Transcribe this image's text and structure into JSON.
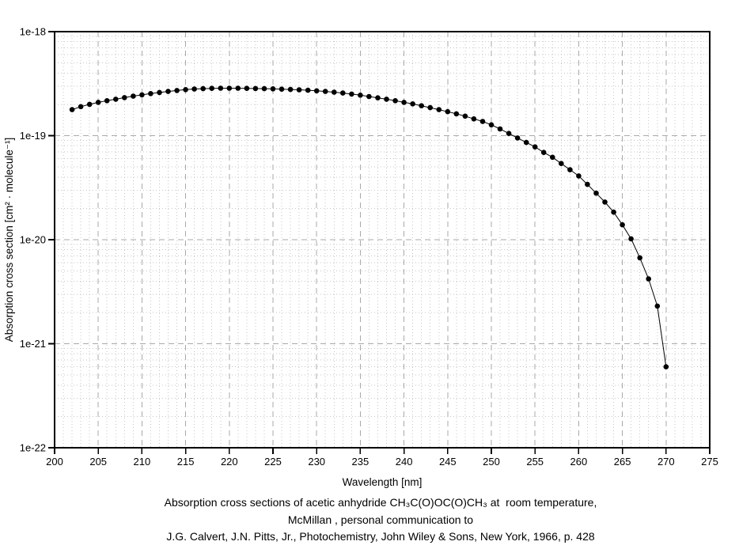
{
  "chart_data": {
    "type": "line",
    "title": "",
    "xlabel": "Wavelength [nm]",
    "ylabel": "Absorption cross section [cm² · molecule⁻¹]",
    "xscale": "linear",
    "yscale": "log",
    "xlim": [
      200,
      275
    ],
    "ylim": [
      1e-22,
      1e-18
    ],
    "grid": {
      "major": "dashed",
      "minor": "dotted",
      "x_minor_step_nm": 1,
      "x_major_step_nm": 5,
      "y_minor": "2-9 per decade"
    },
    "legend_position": "none",
    "x_major_ticks": [
      200,
      205,
      210,
      215,
      220,
      225,
      230,
      235,
      240,
      245,
      250,
      255,
      260,
      265,
      270,
      275
    ],
    "x_tick_labels": [
      "200",
      "205",
      "210",
      "215",
      "220",
      "225",
      "230",
      "235",
      "240",
      "245",
      "250",
      "255",
      "260",
      "265",
      "270",
      "275"
    ],
    "y_major_tick_values": [
      1e-18,
      1e-19,
      1e-20,
      1e-21,
      1e-22
    ],
    "y_tick_labels": [
      "1e-18",
      "1e-19",
      "1e-20",
      "1e-21",
      "1e-22"
    ],
    "marker": "filled-circle",
    "x": [
      202,
      203,
      204,
      205,
      206,
      207,
      208,
      209,
      210,
      211,
      212,
      213,
      214,
      215,
      216,
      217,
      218,
      219,
      220,
      221,
      222,
      223,
      224,
      225,
      226,
      227,
      228,
      229,
      230,
      231,
      232,
      233,
      234,
      235,
      236,
      237,
      238,
      239,
      240,
      241,
      242,
      243,
      244,
      245,
      246,
      247,
      248,
      249,
      250,
      251,
      252,
      253,
      254,
      255,
      256,
      257,
      258,
      259,
      260,
      261,
      262,
      263,
      264,
      265,
      266,
      267,
      268,
      269,
      270
    ],
    "y": [
      1.78e-19,
      1.9e-19,
      2e-19,
      2.09e-19,
      2.17e-19,
      2.24e-19,
      2.32e-19,
      2.4e-19,
      2.47e-19,
      2.54e-19,
      2.6e-19,
      2.66e-19,
      2.72e-19,
      2.77e-19,
      2.81e-19,
      2.83e-19,
      2.85e-19,
      2.86e-19,
      2.86e-19,
      2.86e-19,
      2.85e-19,
      2.84e-19,
      2.83e-19,
      2.82e-19,
      2.8e-19,
      2.78e-19,
      2.76e-19,
      2.73e-19,
      2.7e-19,
      2.66e-19,
      2.62e-19,
      2.57e-19,
      2.51e-19,
      2.45e-19,
      2.38e-19,
      2.31e-19,
      2.24e-19,
      2.17e-19,
      2.09e-19,
      2.02e-19,
      1.94e-19,
      1.86e-19,
      1.78e-19,
      1.7e-19,
      1.62e-19,
      1.54e-19,
      1.45e-19,
      1.37e-19,
      1.27e-19,
      1.16e-19,
      1.05e-19,
      9.5e-20,
      8.6e-20,
      7.8e-20,
      6.9e-20,
      6.2e-20,
      5.4e-20,
      4.7e-20,
      4.1e-20,
      3.4e-20,
      2.8e-20,
      2.3e-20,
      1.84e-20,
      1.39e-20,
      1.02e-20,
      6.7e-21,
      4.2e-21,
      2.3e-21,
      6e-22
    ]
  },
  "caption": {
    "line1": "Absorption cross sections of acetic anhydride CH₃C(O)OC(O)CH₃ at  room temperature,",
    "line2": "McMillan , personal communication to",
    "line3": "J.G. Calvert, J.N. Pitts, Jr., Photochemistry, John Wiley & Sons, New York, 1966, p. 428"
  },
  "colors": {
    "background": "#ffffff",
    "frame": "#000000",
    "grid_major": "#a9a9a9",
    "grid_minor": "#c6c6c6",
    "data": "#000000"
  }
}
